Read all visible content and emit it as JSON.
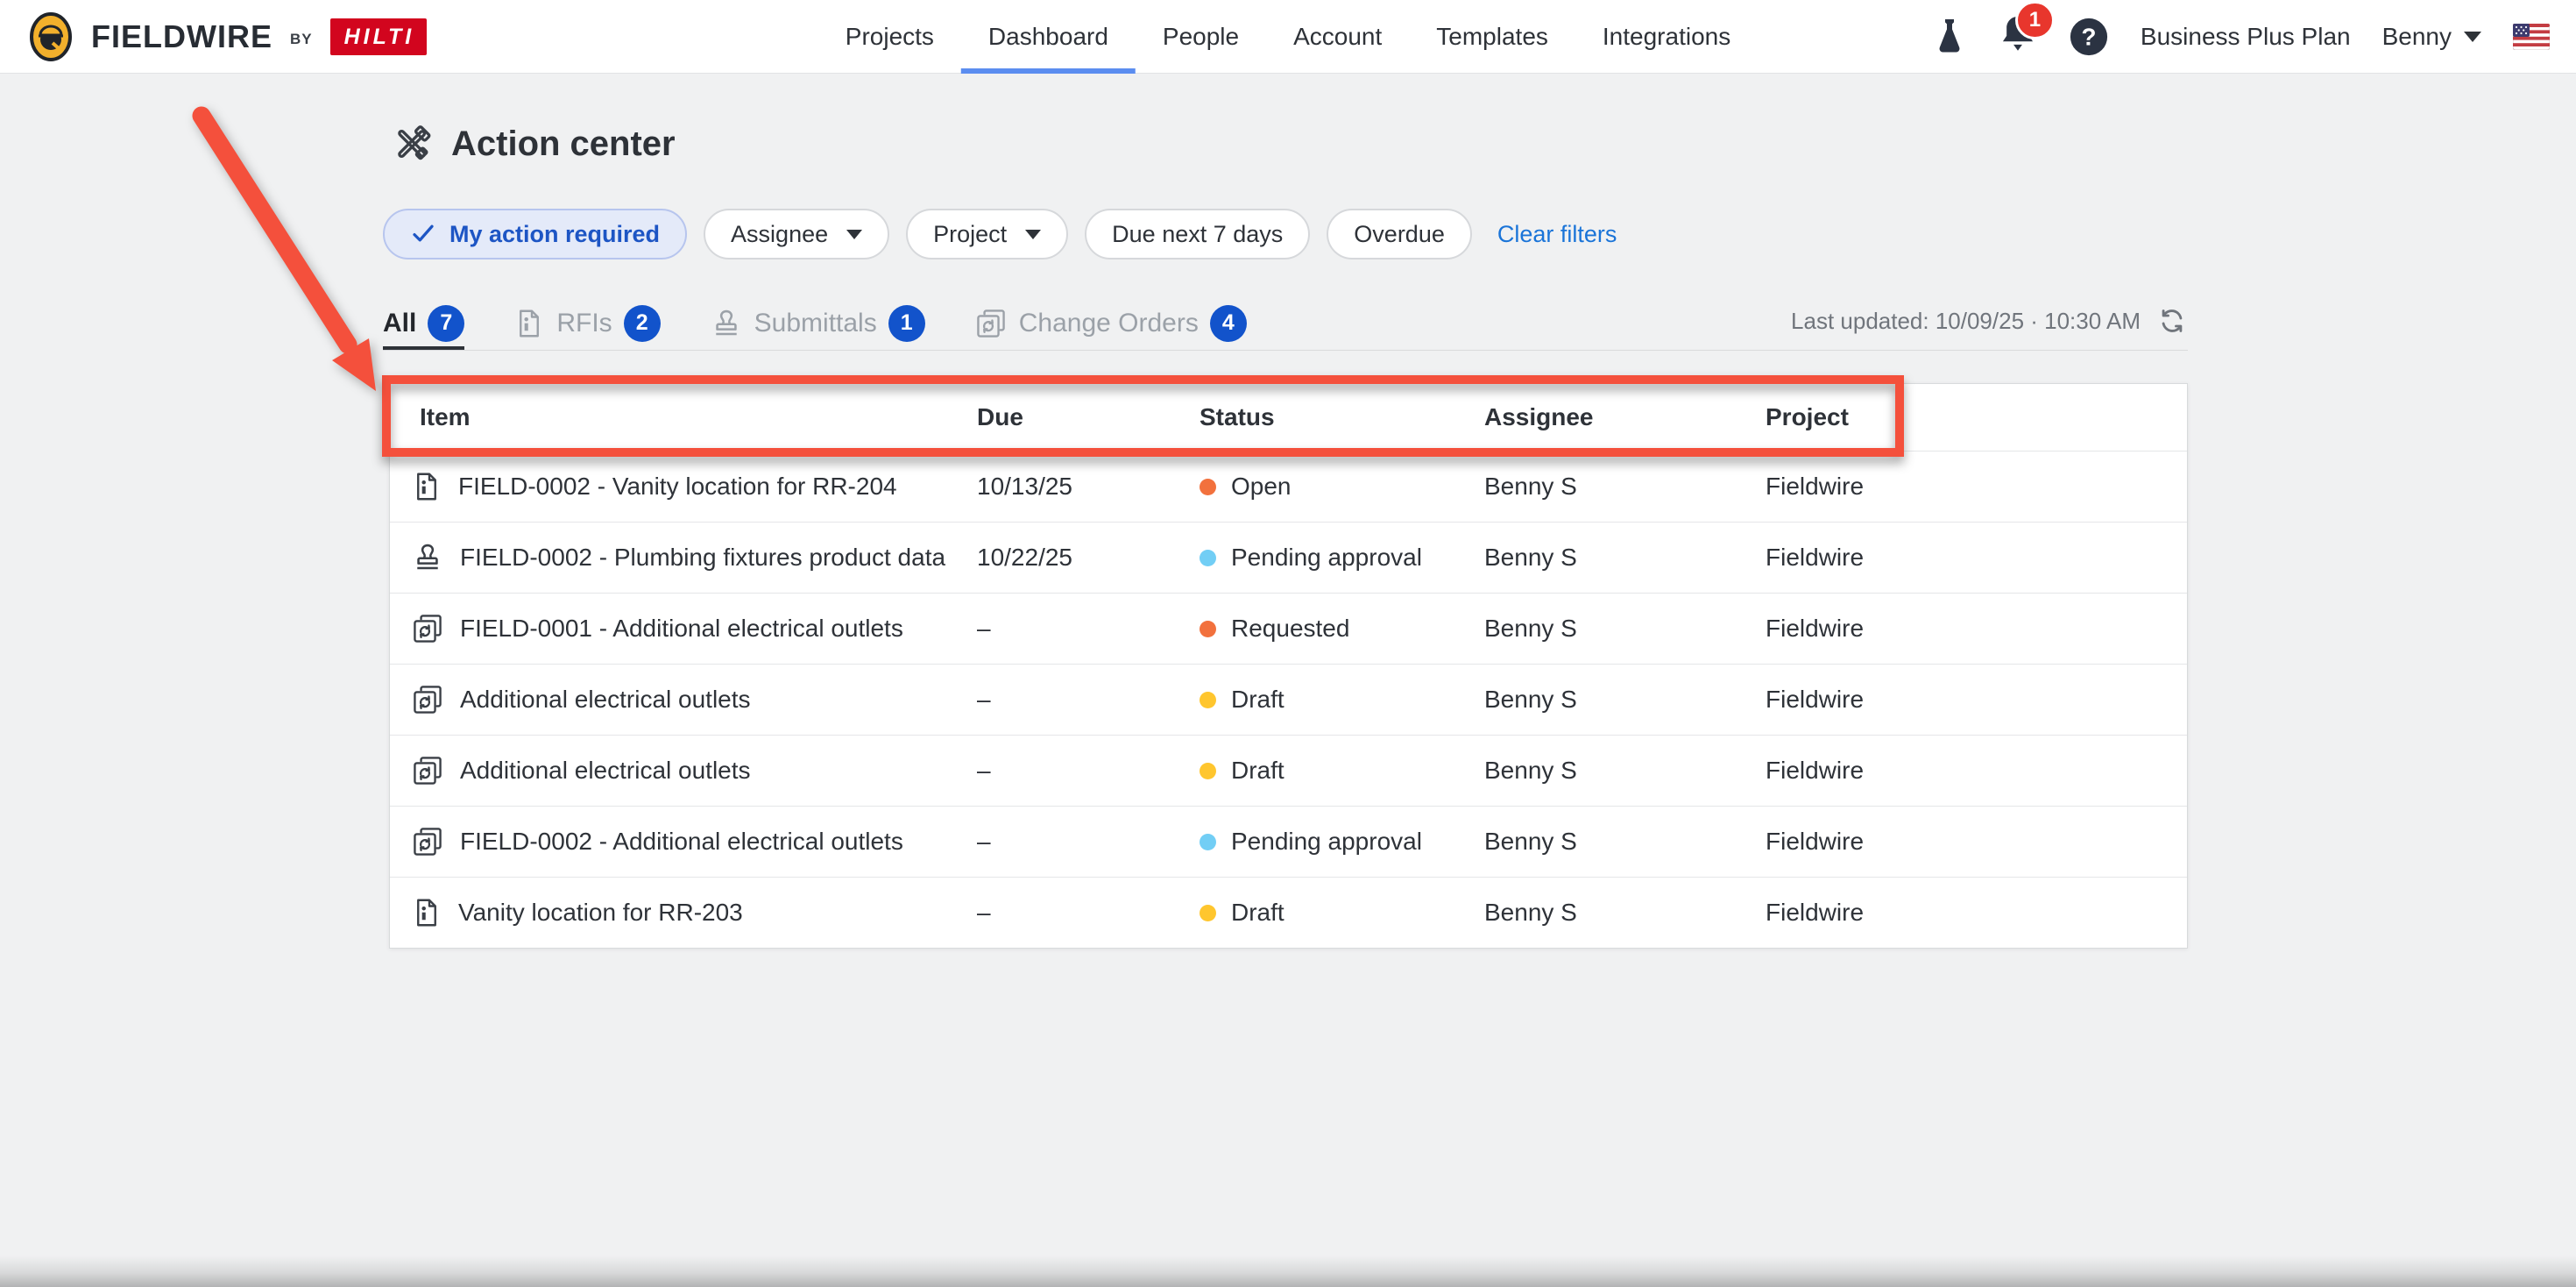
{
  "header": {
    "brand": {
      "name": "FIELDWIRE",
      "by": "BY",
      "partner": "HILTI"
    },
    "nav": [
      {
        "label": "Projects",
        "active": false
      },
      {
        "label": "Dashboard",
        "active": true
      },
      {
        "label": "People",
        "active": false
      },
      {
        "label": "Account",
        "active": false
      },
      {
        "label": "Templates",
        "active": false
      },
      {
        "label": "Integrations",
        "active": false
      }
    ],
    "right": {
      "notification_count": "1",
      "plan": "Business Plus Plan",
      "user": "Benny"
    }
  },
  "page": {
    "title": "Action center",
    "filters": {
      "chips": [
        {
          "label": "My action required",
          "selected": true,
          "check": true,
          "dropdown": false
        },
        {
          "label": "Assignee",
          "selected": false,
          "check": false,
          "dropdown": true
        },
        {
          "label": "Project",
          "selected": false,
          "check": false,
          "dropdown": true
        },
        {
          "label": "Due next 7 days",
          "selected": false,
          "check": false,
          "dropdown": false
        },
        {
          "label": "Overdue",
          "selected": false,
          "check": false,
          "dropdown": false
        }
      ],
      "clear_label": "Clear filters"
    },
    "tabs": [
      {
        "label": "All",
        "count": "7",
        "active": true,
        "icon": null
      },
      {
        "label": "RFIs",
        "count": "2",
        "active": false,
        "icon": "rfi-document-icon"
      },
      {
        "label": "Submittals",
        "count": "1",
        "active": false,
        "icon": "stamp-icon"
      },
      {
        "label": "Change Orders",
        "count": "4",
        "active": false,
        "icon": "change-order-icon"
      }
    ],
    "last_updated": "Last updated: 10/09/25 · 10:30 AM",
    "table": {
      "columns": [
        "Item",
        "Due",
        "Status",
        "Assignee",
        "Project"
      ],
      "rows": [
        {
          "icon": "rfi-document-icon",
          "item": "FIELD-0002 - Vanity location for RR-204",
          "due": "10/13/25",
          "status": "Open",
          "status_color": "#f2713d",
          "assignee": "Benny S",
          "project": "Fieldwire"
        },
        {
          "icon": "stamp-icon",
          "item": "FIELD-0002 - Plumbing fixtures product data",
          "due": "10/22/25",
          "status": "Pending approval",
          "status_color": "#72cef5",
          "assignee": "Benny S",
          "project": "Fieldwire"
        },
        {
          "icon": "change-order-icon",
          "item": "FIELD-0001 - Additional electrical outlets",
          "due": "–",
          "status": "Requested",
          "status_color": "#f2713d",
          "assignee": "Benny S",
          "project": "Fieldwire"
        },
        {
          "icon": "change-order-icon",
          "item": "Additional electrical outlets",
          "due": "–",
          "status": "Draft",
          "status_color": "#ffc62e",
          "assignee": "Benny S",
          "project": "Fieldwire"
        },
        {
          "icon": "change-order-icon",
          "item": "Additional electrical outlets",
          "due": "–",
          "status": "Draft",
          "status_color": "#ffc62e",
          "assignee": "Benny S",
          "project": "Fieldwire"
        },
        {
          "icon": "change-order-icon",
          "item": "FIELD-0002 - Additional electrical outlets",
          "due": "–",
          "status": "Pending approval",
          "status_color": "#72cef5",
          "assignee": "Benny S",
          "project": "Fieldwire"
        },
        {
          "icon": "rfi-document-icon",
          "item": "Vanity location for RR-203",
          "due": "–",
          "status": "Draft",
          "status_color": "#ffc62e",
          "assignee": "Benny S",
          "project": "Fieldwire"
        }
      ]
    }
  },
  "colors": {
    "accent_blue": "#1253cb",
    "link_blue": "#1a74d8",
    "selected_chip_text": "#1d55c4",
    "annotation_red": "#f4503c",
    "hilti_red": "#d2051e",
    "status_open": "#f2713d",
    "status_pending": "#72cef5",
    "status_draft": "#ffc62e"
  }
}
